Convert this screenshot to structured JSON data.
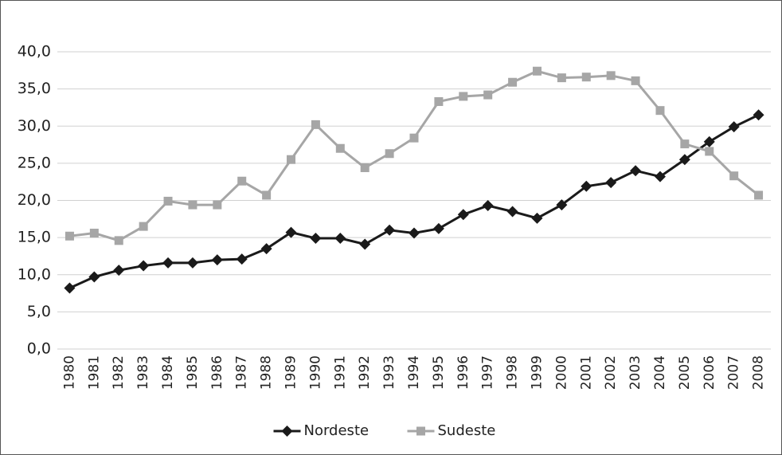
{
  "chart_data": {
    "type": "line",
    "categories": [
      "1980",
      "1981",
      "1982",
      "1983",
      "1984",
      "1985",
      "1986",
      "1987",
      "1988",
      "1989",
      "1990",
      "1991",
      "1992",
      "1993",
      "1994",
      "1995",
      "1996",
      "1997",
      "1998",
      "1999",
      "2000",
      "2001",
      "2002",
      "2003",
      "2004",
      "2005",
      "2006",
      "2007",
      "2008"
    ],
    "series": [
      {
        "name": "Nordeste",
        "color": "#1a1a1a",
        "marker": "diamond",
        "values": [
          8.2,
          9.7,
          10.6,
          11.2,
          11.6,
          11.6,
          12.0,
          12.1,
          13.5,
          15.7,
          14.9,
          14.9,
          14.1,
          16.0,
          15.6,
          16.2,
          18.1,
          19.3,
          18.5,
          17.6,
          19.4,
          21.9,
          22.4,
          24.0,
          23.2,
          25.5,
          27.9,
          29.9,
          31.5
        ]
      },
      {
        "name": "Sudeste",
        "color": "#a6a6a6",
        "marker": "square",
        "values": [
          15.2,
          15.6,
          14.6,
          16.5,
          19.9,
          19.4,
          19.4,
          22.6,
          20.7,
          25.5,
          30.2,
          27.0,
          24.4,
          26.3,
          28.4,
          33.3,
          34.0,
          34.2,
          35.9,
          37.4,
          36.5,
          36.6,
          36.8,
          36.1,
          32.1,
          27.6,
          26.6,
          23.3,
          20.7
        ]
      }
    ],
    "ylim": [
      0,
      40
    ],
    "yticks": [
      {
        "value": 0,
        "label": "0,0"
      },
      {
        "value": 5,
        "label": "5,0"
      },
      {
        "value": 10,
        "label": "10,0"
      },
      {
        "value": 15,
        "label": "15,0"
      },
      {
        "value": 20,
        "label": "20,0"
      },
      {
        "value": 25,
        "label": "25,0"
      },
      {
        "value": 30,
        "label": "30,0"
      },
      {
        "value": 35,
        "label": "35,0"
      },
      {
        "value": 40,
        "label": "40,0"
      }
    ],
    "grid": true,
    "legend": "bottom"
  }
}
